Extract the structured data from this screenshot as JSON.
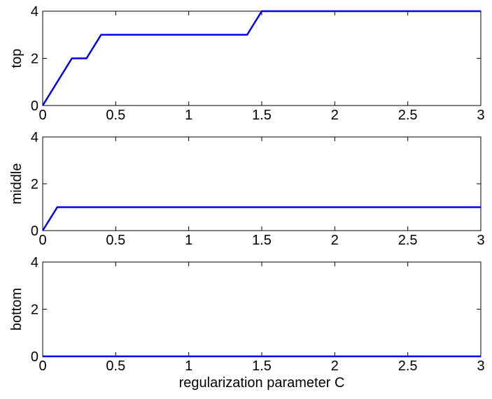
{
  "chart_data": [
    {
      "type": "line",
      "ylabel": "top",
      "xlabel": "",
      "xlim": [
        0,
        3
      ],
      "ylim": [
        0,
        4
      ],
      "xticks": [
        "0",
        "0.5",
        "1",
        "1.5",
        "2",
        "2.5",
        "3"
      ],
      "yticks": [
        "0",
        "2",
        "4"
      ],
      "grid": false,
      "series": [
        {
          "color": "#0000e6",
          "x": [
            0,
            0.2,
            0.3,
            0.4,
            1.4,
            1.5,
            3.0
          ],
          "y": [
            0,
            2,
            2,
            3,
            3,
            4,
            4
          ]
        }
      ]
    },
    {
      "type": "line",
      "ylabel": "middle",
      "xlabel": "",
      "xlim": [
        0,
        3
      ],
      "ylim": [
        0,
        4
      ],
      "xticks": [
        "0",
        "0.5",
        "1",
        "1.5",
        "2",
        "2.5",
        "3"
      ],
      "yticks": [
        "0",
        "2",
        "4"
      ],
      "grid": false,
      "series": [
        {
          "color": "#0000e6",
          "x": [
            0,
            0.1,
            3.0
          ],
          "y": [
            0,
            1,
            1
          ]
        }
      ]
    },
    {
      "type": "line",
      "ylabel": "bottom",
      "xlabel": "regularization parameter C",
      "xlim": [
        0,
        3
      ],
      "ylim": [
        0,
        4
      ],
      "xticks": [
        "0",
        "0.5",
        "1",
        "1.5",
        "2",
        "2.5",
        "3"
      ],
      "yticks": [
        "0",
        "2",
        "4"
      ],
      "grid": false,
      "series": [
        {
          "color": "#0000e6",
          "x": [
            0,
            3.0
          ],
          "y": [
            0,
            0
          ]
        }
      ]
    }
  ]
}
